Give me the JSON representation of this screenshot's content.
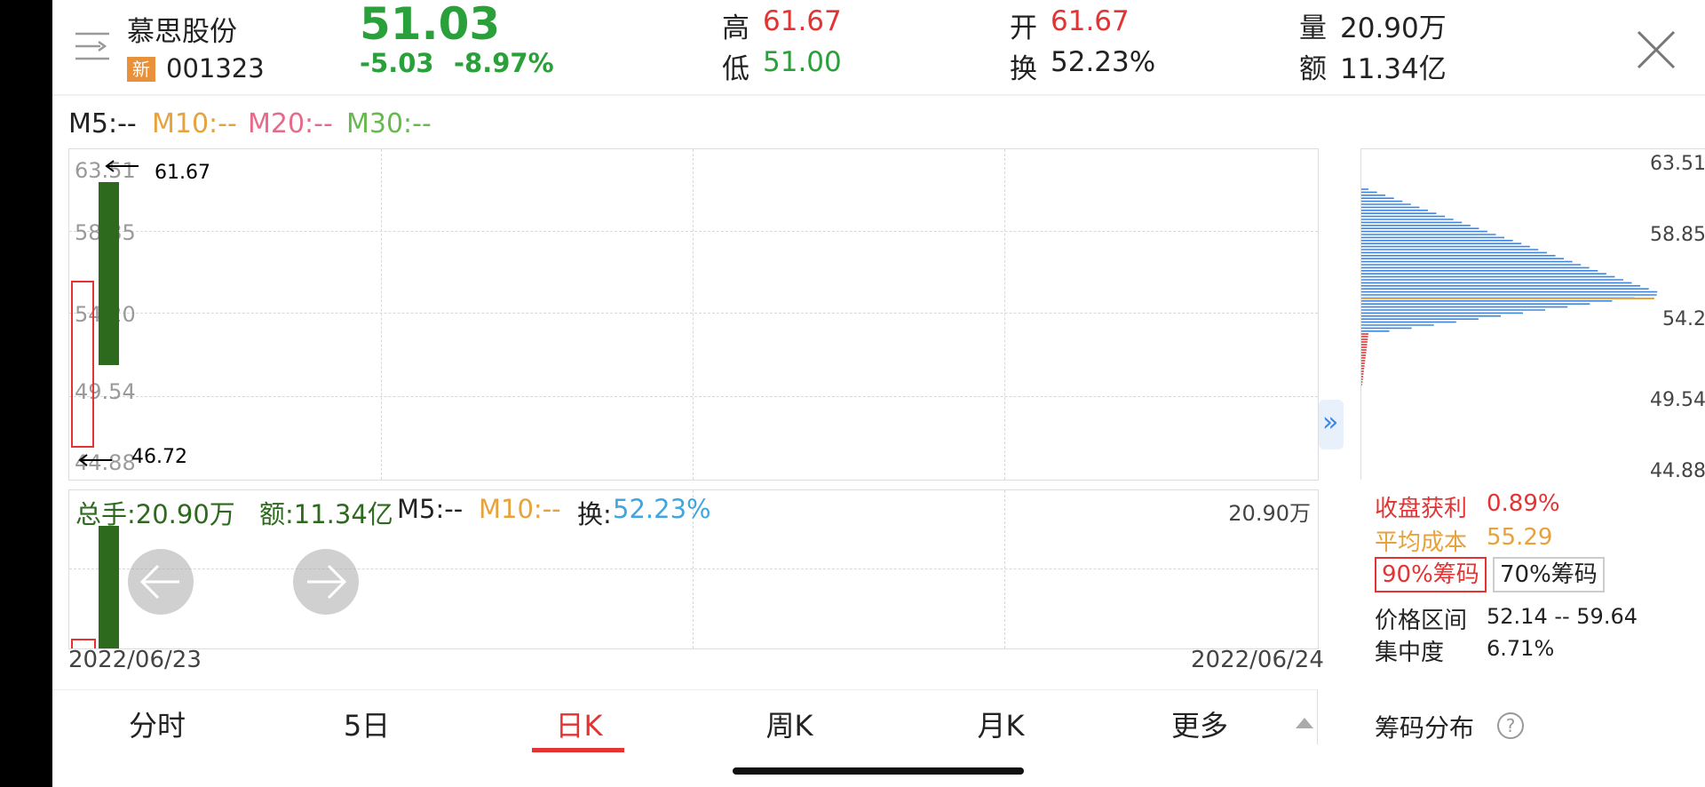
{
  "stock": {
    "name": "慕思股份",
    "badge": "新",
    "code": "001323",
    "price": "51.03",
    "change": "-5.03",
    "change_pct": "-8.97%"
  },
  "quote": {
    "high_label": "高",
    "high_value": "61.67",
    "low_label": "低",
    "low_value": "51.00",
    "open_label": "开",
    "open_value": "61.67",
    "turnover_label": "换",
    "turnover_value": "52.23%",
    "volume_label": "量",
    "volume_value": "20.90万",
    "amount_label": "额",
    "amount_value": "11.34亿"
  },
  "ma_legend": {
    "m5": "M5:--",
    "m10": "M10:--",
    "m20": "M20:--",
    "m30": "M30:--"
  },
  "kline": {
    "y_labels": [
      "63.51",
      "58.85",
      "54.20",
      "49.54",
      "44.88"
    ],
    "high_marker": "61.67",
    "low_marker": "46.72",
    "candle": {
      "open": 61.67,
      "close": 51.03,
      "high": 61.67,
      "low": 51.0
    }
  },
  "volume_panel": {
    "total_label": "总手:20.90万",
    "amount_label": "额:11.34亿",
    "m5": "M5:--",
    "m10": "M10:--",
    "turnover_key": "换:",
    "turnover_val": "52.23%",
    "max_label": "20.90万"
  },
  "dates": {
    "start": "2022/06/23",
    "end": "2022/06/24"
  },
  "expand_glyph": "»",
  "chip": {
    "y_labels": [
      "63.51",
      "58.85",
      "54.2",
      "49.54",
      "44.88"
    ],
    "profit_label": "收盘获利",
    "profit_value": "0.89%",
    "avg_label": "平均成本",
    "avg_value": "55.29",
    "btn90": "90%筹码",
    "btn70": "70%筹码",
    "range_label": "价格区间",
    "range_value": "52.14 -- 59.64",
    "concentration_label": "集中度",
    "concentration_value": "6.71%",
    "title": "筹码分布",
    "help": "?"
  },
  "tabs": [
    "分时",
    "5日",
    "日K",
    "周K",
    "月K",
    "更多"
  ],
  "active_tab": 2,
  "colors": {
    "up": "#e33333",
    "down": "#2d6a1e",
    "m10": "#e6a23c",
    "m20": "#e86a8a",
    "m30": "#67b94d",
    "chip_blue": "#3f86e0",
    "active": "#e33333"
  }
}
